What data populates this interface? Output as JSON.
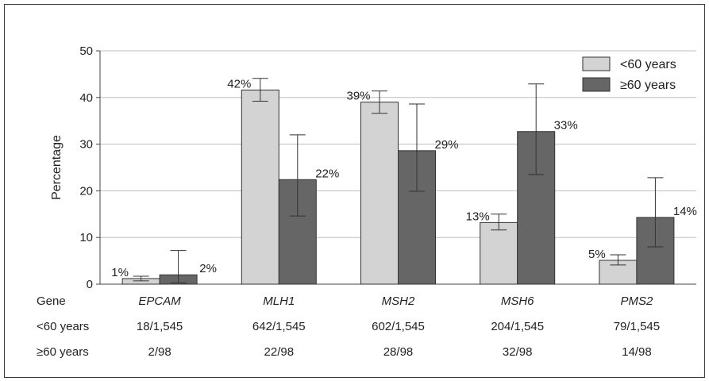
{
  "chart_data": {
    "type": "bar",
    "ylabel": "Percentage",
    "ylim": [
      0,
      50
    ],
    "yticks": [
      0,
      10,
      20,
      30,
      40,
      50
    ],
    "grid": true,
    "legend_placement": "top-right",
    "categories": [
      "EPCAM",
      "MLH1",
      "MSH2",
      "MSH6",
      "PMS2"
    ],
    "series": [
      {
        "name": "<60 years",
        "color": "#d3d3d3",
        "values": [
          1.2,
          41.6,
          39.0,
          13.2,
          5.1
        ],
        "error_low": [
          0.7,
          39.2,
          36.6,
          11.6,
          4.1
        ],
        "error_high": [
          1.7,
          44.1,
          41.4,
          15.0,
          6.3
        ],
        "labels": [
          "1%",
          "42%",
          "39%",
          "13%",
          "5%"
        ],
        "counts": [
          "18/1,545",
          "642/1,545",
          "602/1,545",
          "204/1,545",
          "79/1,545"
        ]
      },
      {
        "name": "≥60 years",
        "color": "#666666",
        "values": [
          2.0,
          22.4,
          28.6,
          32.7,
          14.3
        ],
        "error_low": [
          0.3,
          14.6,
          19.9,
          23.5,
          8.0
        ],
        "error_high": [
          7.2,
          32.0,
          38.6,
          42.9,
          22.8
        ],
        "labels": [
          "2%",
          "22%",
          "29%",
          "33%",
          "14%"
        ],
        "counts": [
          "2/98",
          "22/98",
          "28/98",
          "32/98",
          "14/98"
        ]
      }
    ],
    "table_row_headers": [
      "Gene",
      "<60 years",
      "≥60 years"
    ]
  }
}
